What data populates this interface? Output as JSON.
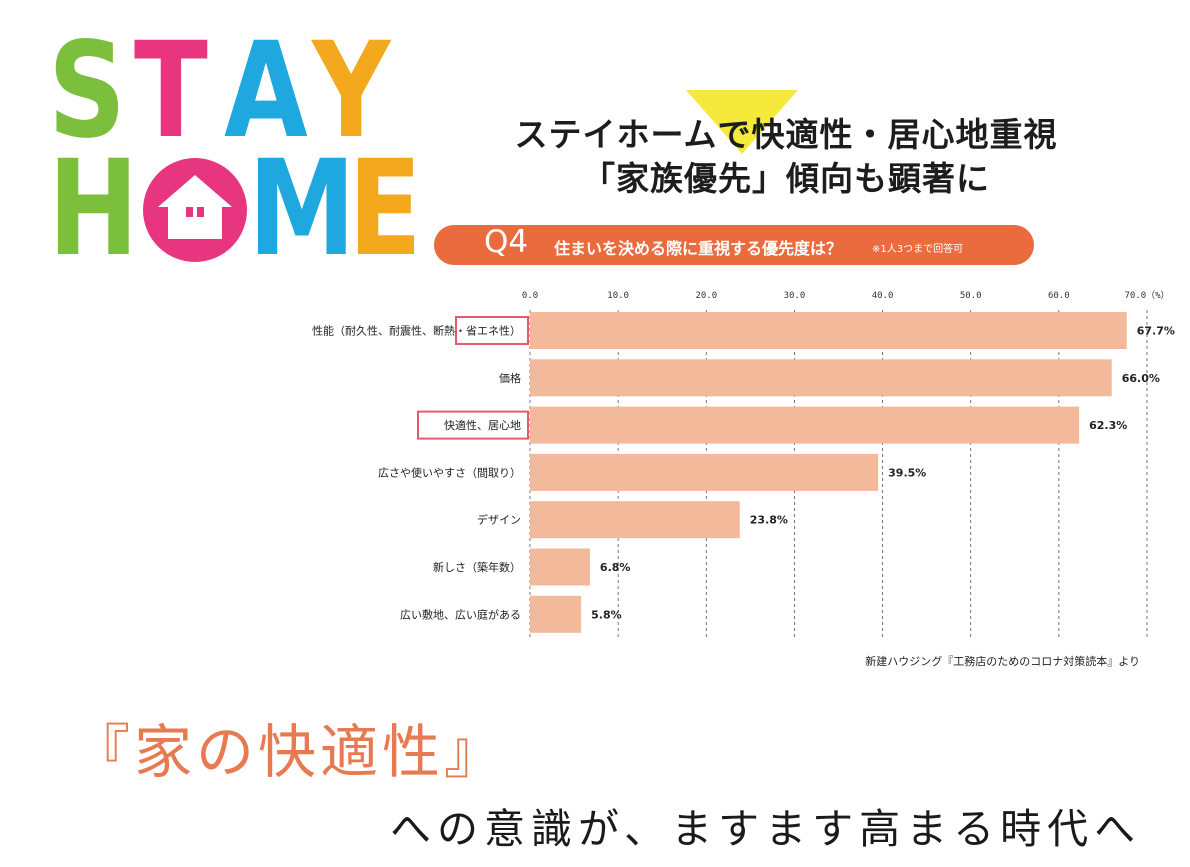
{
  "logo": {
    "row1": [
      {
        "ch": "S",
        "color": "#7cbf3c"
      },
      {
        "ch": "T",
        "color": "#e8357f"
      },
      {
        "ch": "A",
        "color": "#1fa7e0"
      },
      {
        "ch": "Y",
        "color": "#f3a81e"
      }
    ],
    "row2": [
      {
        "ch": "H",
        "color": "#7cbf3c"
      },
      {
        "ch": "O",
        "color": "#e8357f"
      },
      {
        "ch": "M",
        "color": "#1fa7e0"
      },
      {
        "ch": "E",
        "color": "#f3a81e"
      }
    ]
  },
  "headline": {
    "line1": "ステイホームで快適性・居心地重視",
    "line2": "「家族優先」傾向も顕著に"
  },
  "question": {
    "number": "Q4",
    "text": "住まいを決める際に重視する優先度は？",
    "note": "※1人3つまで回答可"
  },
  "chart_data": {
    "type": "bar",
    "orientation": "horizontal",
    "categories": [
      "性能（耐久性、耐震性、断熱・省エネ性）",
      "価格",
      "快適性、居心地",
      "広さや使いやすさ（間取り）",
      "デザイン",
      "新しさ（築年数）",
      "広い敷地、広い庭がある"
    ],
    "values": [
      67.7,
      66.0,
      62.3,
      39.5,
      23.8,
      6.8,
      5.8
    ],
    "value_labels": [
      "67.7%",
      "66.0%",
      "62.3%",
      "39.5%",
      "23.8%",
      "6.8%",
      "5.8%"
    ],
    "ticks": [
      "0.0",
      "10.0",
      "20.0",
      "30.0",
      "40.0",
      "50.0",
      "60.0",
      "70.0（%）"
    ],
    "xlim": [
      0,
      70
    ],
    "highlighted": [
      {
        "category_index": 0,
        "text": "省エネ性）"
      },
      {
        "category_index": 2,
        "text": "快適性、居心地"
      }
    ],
    "bar_color": "#f2b99b",
    "highlight_color": "#e45a6d",
    "grid": true
  },
  "source": "新建ハウジング『工務店のためのコロナ対策読本』より",
  "footer": {
    "title": "『家の快適性』",
    "subtitle": "への意識が、ますます高まる時代へ"
  }
}
